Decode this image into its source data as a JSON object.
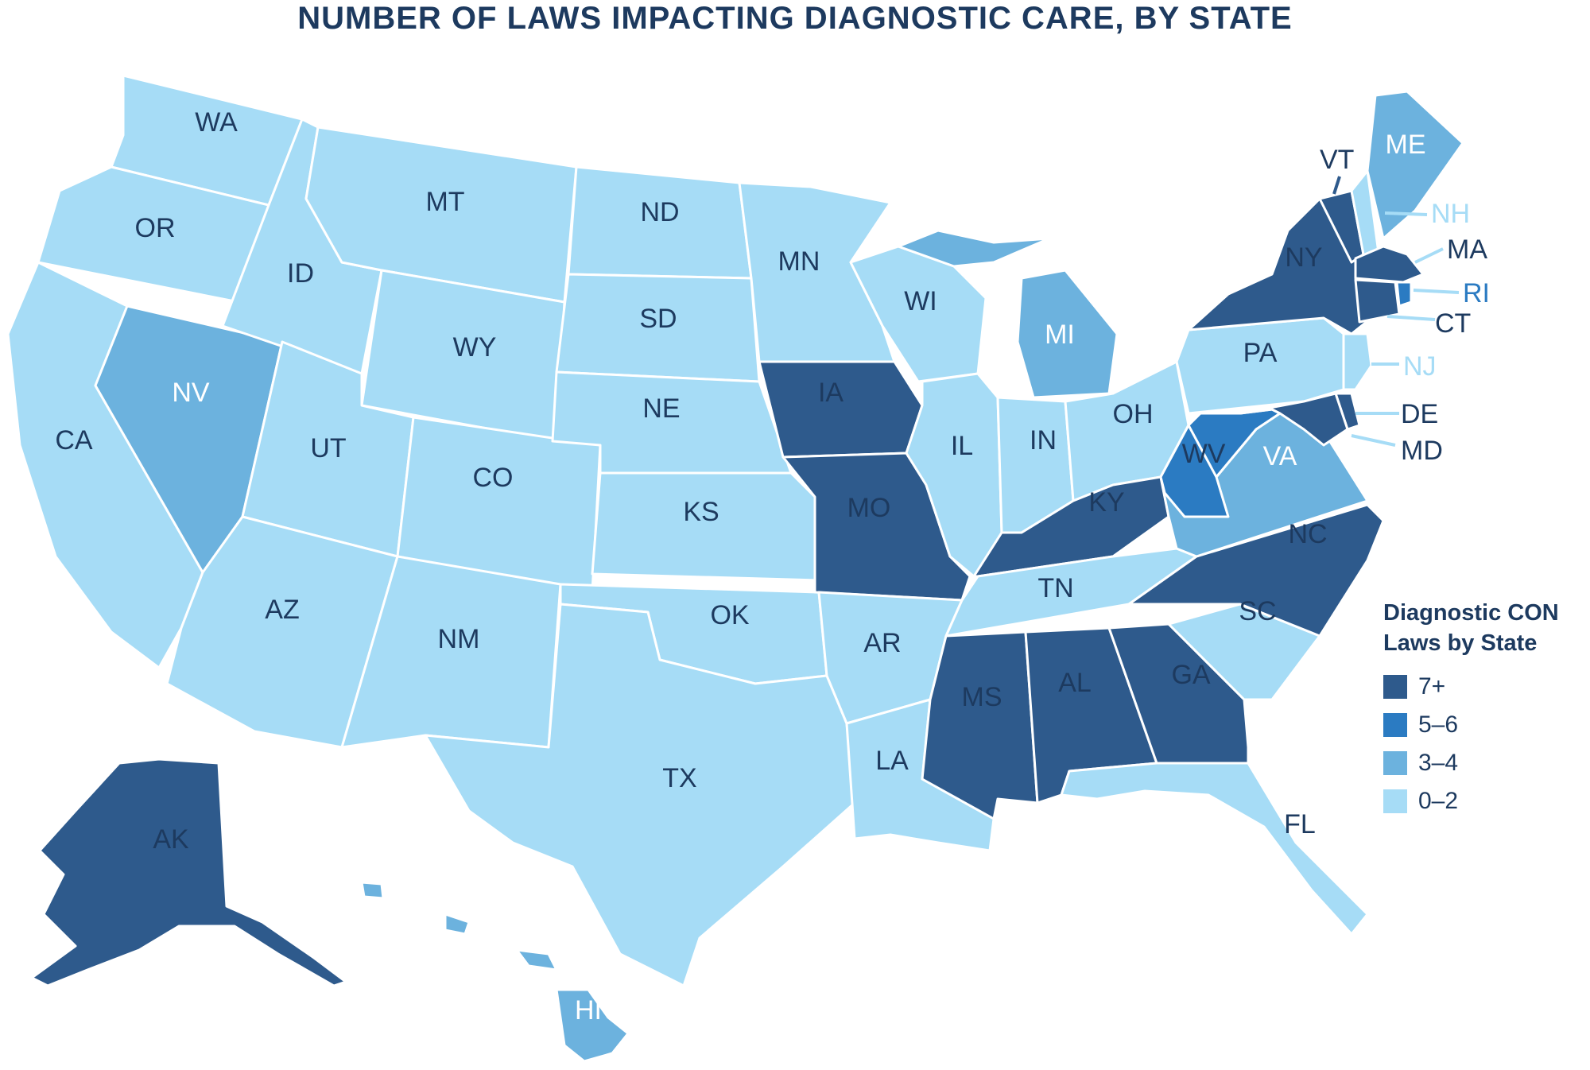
{
  "title": "NUMBER OF LAWS IMPACTING DIAGNOSTIC CARE, BY STATE",
  "colors": {
    "tier_7_plus": "#2e5a8c",
    "tier_5_6": "#2b7bc2",
    "tier_3_4": "#6cb2de",
    "tier_0_2": "#a6dcf6",
    "label_dark_bg": "#ffffff",
    "label_light_bg": "#1d3a5f",
    "callout_light": "#a6dcf6",
    "border": "#ffffff"
  },
  "legend": {
    "title_line1": "Diagnostic CON",
    "title_line2": "Laws by State",
    "items": [
      {
        "label": "7+",
        "color": "#2e5a8c"
      },
      {
        "label": "5–6",
        "color": "#2b7bc2"
      },
      {
        "label": "3–4",
        "color": "#6cb2de"
      },
      {
        "label": "0–2",
        "color": "#a6dcf6"
      }
    ]
  },
  "states": [
    {
      "abbr": "WA",
      "value": "0"
    },
    {
      "abbr": "OR",
      "value": "2"
    },
    {
      "abbr": "CA",
      "value": "0"
    },
    {
      "abbr": "NV",
      "value": "3"
    },
    {
      "abbr": "ID",
      "value": "0"
    },
    {
      "abbr": "MT",
      "value": "0"
    },
    {
      "abbr": "WY",
      "value": "0"
    },
    {
      "abbr": "UT",
      "value": "0"
    },
    {
      "abbr": "AZ",
      "value": "0"
    },
    {
      "abbr": "CO",
      "value": "0"
    },
    {
      "abbr": "NM",
      "value": "0"
    },
    {
      "abbr": "ND",
      "value": "0"
    },
    {
      "abbr": "SD",
      "value": "0"
    },
    {
      "abbr": "NE",
      "value": "0"
    },
    {
      "abbr": "KS",
      "value": "0"
    },
    {
      "abbr": "OK",
      "value": "0"
    },
    {
      "abbr": "TX",
      "value": "0"
    },
    {
      "abbr": "MN",
      "value": "0"
    },
    {
      "abbr": "IA",
      "value": "8"
    },
    {
      "abbr": "MO",
      "value": "7"
    },
    {
      "abbr": "AR",
      "value": "0"
    },
    {
      "abbr": "LA",
      "value": "0"
    },
    {
      "abbr": "WI",
      "value": "1"
    },
    {
      "abbr": "IL",
      "value": "2"
    },
    {
      "abbr": "MI",
      "value": "4"
    },
    {
      "abbr": "IN",
      "value": "0"
    },
    {
      "abbr": "OH",
      "value": "0"
    },
    {
      "abbr": "KY",
      "value": "9"
    },
    {
      "abbr": "TN",
      "value": "2"
    },
    {
      "abbr": "MS",
      "value": "8"
    },
    {
      "abbr": "AL",
      "value": "8"
    },
    {
      "abbr": "GA",
      "value": "8"
    },
    {
      "abbr": "FL",
      "value": "0"
    },
    {
      "abbr": "SC",
      "value": "0"
    },
    {
      "abbr": "NC",
      "value": "9"
    },
    {
      "abbr": "VA",
      "value": "4"
    },
    {
      "abbr": "WV",
      "value": "6"
    },
    {
      "abbr": "PA",
      "value": "0"
    },
    {
      "abbr": "NY",
      "value": "9"
    },
    {
      "abbr": "VT",
      "value": "9"
    },
    {
      "abbr": "NH",
      "value": "0"
    },
    {
      "abbr": "ME",
      "value": "3"
    },
    {
      "abbr": "MA",
      "value": "7"
    },
    {
      "abbr": "RI",
      "value": "5"
    },
    {
      "abbr": "CT",
      "value": "7"
    },
    {
      "abbr": "NJ",
      "value": "1"
    },
    {
      "abbr": "DE",
      "value": "7"
    },
    {
      "abbr": "MD",
      "value": "7"
    },
    {
      "abbr": "AK",
      "value": "8"
    },
    {
      "abbr": "HI",
      "value": "4"
    }
  ]
}
